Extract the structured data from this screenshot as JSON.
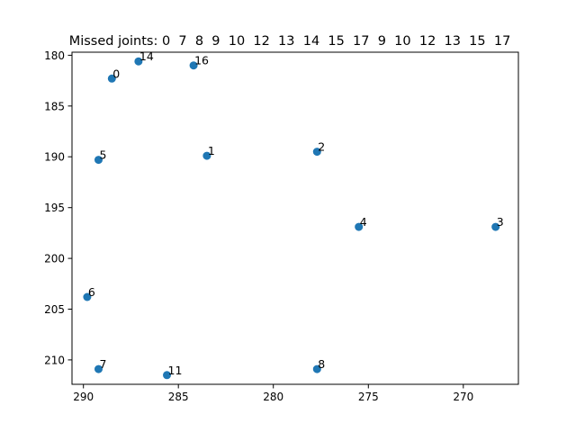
{
  "chart_data": {
    "type": "scatter",
    "title": "Missed joints: 0  7  8  9  10  12  13  14  15  17  9  10  12  13  15  17",
    "xlabel": "",
    "ylabel": "",
    "xlim": [
      290.6,
      267.1
    ],
    "ylim": [
      212.4,
      179.7
    ],
    "x_inverted": true,
    "y_inverted": true,
    "grid": false,
    "xticks": [
      290,
      285,
      280,
      275,
      270
    ],
    "xtick_labels": [
      "290",
      "285",
      "280",
      "275",
      "270"
    ],
    "yticks": [
      180,
      185,
      190,
      195,
      200,
      205,
      210
    ],
    "ytick_labels": [
      "180",
      "185",
      "190",
      "195",
      "200",
      "205",
      "210"
    ],
    "marker_color": "#1f77b4",
    "points": [
      {
        "label": "0",
        "x": 288.5,
        "y": 182.3
      },
      {
        "label": "14",
        "x": 287.1,
        "y": 180.6
      },
      {
        "label": "16",
        "x": 284.2,
        "y": 181.0
      },
      {
        "label": "1",
        "x": 283.5,
        "y": 189.9
      },
      {
        "label": "2",
        "x": 277.7,
        "y": 189.5
      },
      {
        "label": "5",
        "x": 289.2,
        "y": 190.3
      },
      {
        "label": "4",
        "x": 275.5,
        "y": 196.9
      },
      {
        "label": "3",
        "x": 268.3,
        "y": 196.9
      },
      {
        "label": "6",
        "x": 289.8,
        "y": 203.8
      },
      {
        "label": "7",
        "x": 289.2,
        "y": 210.9
      },
      {
        "label": "11",
        "x": 285.6,
        "y": 211.5
      },
      {
        "label": "8",
        "x": 277.7,
        "y": 210.9
      }
    ]
  }
}
